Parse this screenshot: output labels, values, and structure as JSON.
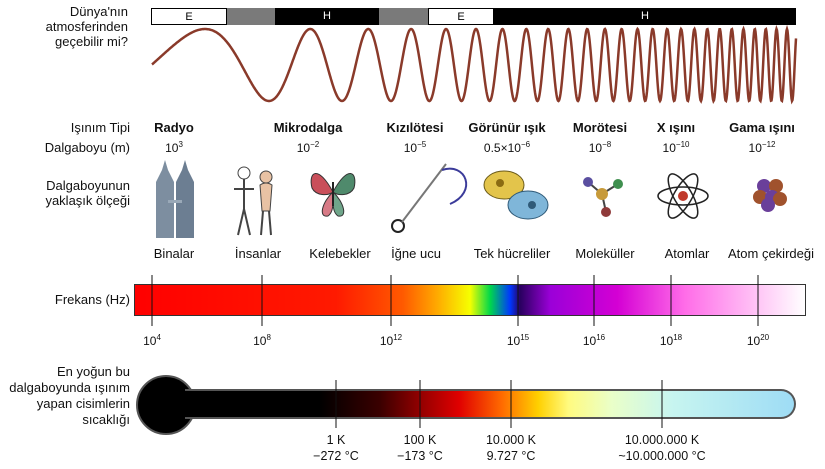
{
  "atmosphere": {
    "question": "Dünya'nın atmosferinden geçebilir mi?",
    "segments": [
      "E",
      "H",
      "E",
      "H"
    ]
  },
  "labels": {
    "radiation_type": "Işınım Tipi",
    "wavelength": "Dalgaboyu (m)",
    "scale": "Dalgaboyunun yaklaşık ölçeği",
    "frequency": "Frekans (Hz)",
    "temperature": "En yoğun bu dalgaboyunda ışınım yapan cisimlerin sıcaklığı"
  },
  "types": [
    {
      "name": "Radyo",
      "wl_base": "10",
      "wl_exp": "3",
      "icon": "buildings-icon",
      "scale": "Binalar"
    },
    {
      "name": "Mikrodalga",
      "wl_base": "10",
      "wl_exp": "−2",
      "icon": "humans-icon",
      "scale": "İnsanlar"
    },
    {
      "name": "Kızılötesi",
      "wl_base": "10",
      "wl_exp": "−5",
      "icon": "butterfly-icon",
      "scale": "Kelebekler"
    },
    {
      "name": "Görünür ışık",
      "wl_base": "0.5×10",
      "wl_exp": "−6",
      "icon": "needle-icon",
      "scale": "İğne ucu"
    },
    {
      "name": "Morötesi",
      "wl_base": "10",
      "wl_exp": "−8",
      "icon": "cell-icon",
      "scale": "Tek hücreliler"
    },
    {
      "name": "X ışını",
      "wl_base": "10",
      "wl_exp": "−10",
      "icon": "molecule-icon",
      "scale": "Moleküller"
    },
    {
      "name": "Gama ışını",
      "wl_base": "10",
      "wl_exp": "−12",
      "icon": "atom-icon",
      "scale": "Atomlar"
    },
    {
      "name": "",
      "wl_base": "",
      "wl_exp": "",
      "icon": "nucleus-icon",
      "scale": "Atom çekirdeği"
    }
  ],
  "frequency_ticks": [
    {
      "base": "10",
      "exp": "4"
    },
    {
      "base": "10",
      "exp": "8"
    },
    {
      "base": "10",
      "exp": "12"
    },
    {
      "base": "10",
      "exp": "15"
    },
    {
      "base": "10",
      "exp": "16"
    },
    {
      "base": "10",
      "exp": "18"
    },
    {
      "base": "10",
      "exp": "20"
    }
  ],
  "temperature_ticks": [
    {
      "k": "1 K",
      "c": "−272 °C"
    },
    {
      "k": "100 K",
      "c": "−173 °C"
    },
    {
      "k": "10.000 K",
      "c": "9.727 °C"
    },
    {
      "k": "10.000.000 K",
      "c": "~10.000.000 °C"
    }
  ]
}
